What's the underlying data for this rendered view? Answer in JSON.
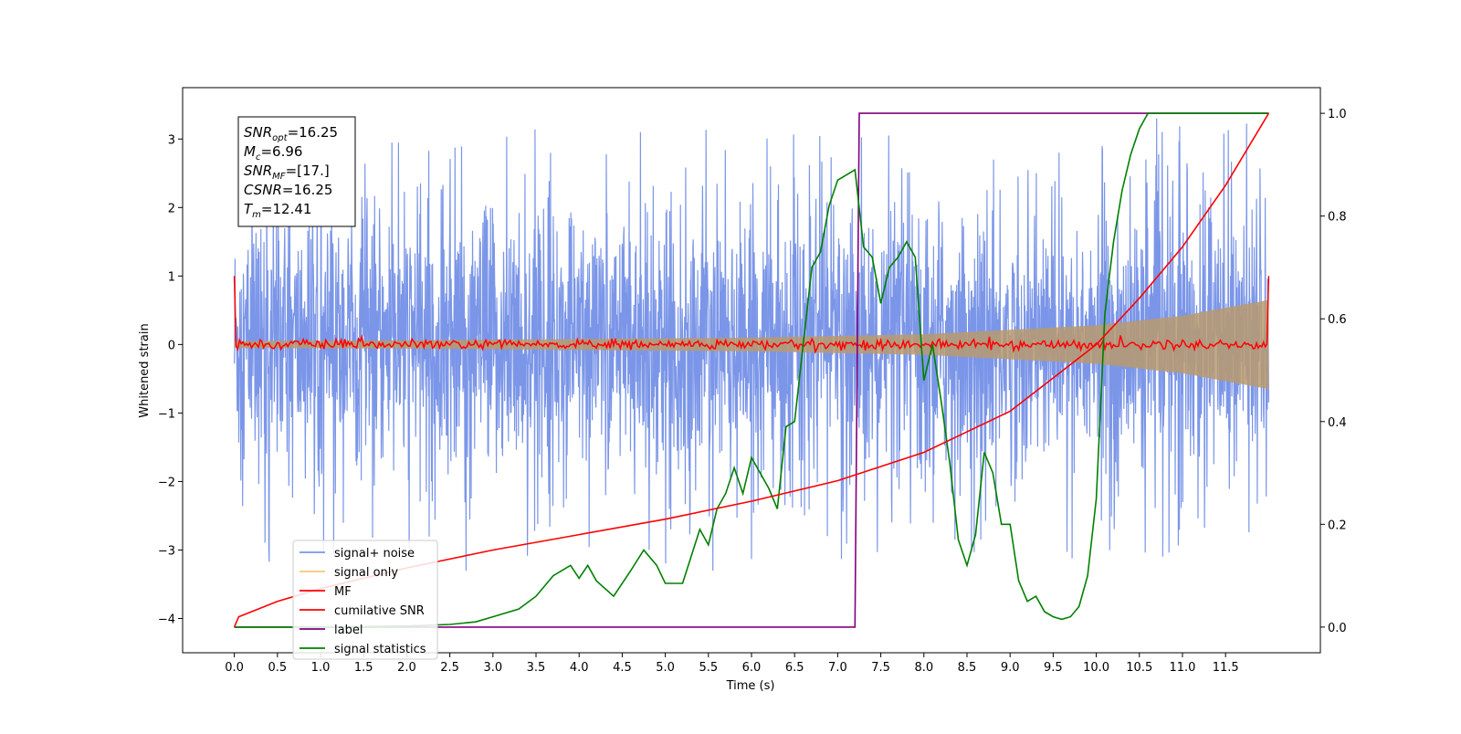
{
  "chart_data": {
    "type": "line",
    "title": "",
    "xlabel": "Time (s)",
    "ylabel": "Whitened strain",
    "xlim": [
      -0.6,
      12.6
    ],
    "ylim": [
      -4.5,
      3.75
    ],
    "y2lim": [
      -0.05,
      1.05
    ],
    "x_ticks": [
      0.0,
      0.5,
      1.0,
      1.5,
      2.0,
      2.5,
      3.0,
      3.5,
      4.0,
      4.5,
      5.0,
      5.5,
      6.0,
      6.5,
      7.0,
      7.5,
      8.0,
      8.5,
      9.0,
      9.5,
      10.0,
      10.5,
      11.0,
      11.5
    ],
    "x_tick_labels": [
      "0.0",
      "0.5",
      "1.0",
      "1.5",
      "2.0",
      "2.5",
      "3.0",
      "3.5",
      "4.0",
      "4.5",
      "5.0",
      "5.5",
      "6.0",
      "6.5",
      "7.0",
      "7.5",
      "8.0",
      "8.5",
      "9.0",
      "9.5",
      "10.0",
      "10.5",
      "11.0",
      "11.5"
    ],
    "y_ticks": [
      3,
      2,
      1,
      0,
      -1,
      -2,
      -3,
      -4
    ],
    "y_tick_labels": [
      "3",
      "2",
      "1",
      "0",
      "−1",
      "−2",
      "−3",
      "−4"
    ],
    "y2_ticks": [
      1.0,
      0.8,
      0.6,
      0.4,
      0.2,
      0.0
    ],
    "y2_tick_labels": [
      "1.0",
      "0.8",
      "0.6",
      "0.4",
      "0.2",
      "0.0"
    ],
    "legend_position": "lower-left",
    "annotation": {
      "lines": [
        {
          "base": "SNR",
          "sub": "opt",
          "value": "=16.25"
        },
        {
          "base": "M",
          "sub": "c",
          "value": "=6.96"
        },
        {
          "base": "SNR",
          "sub": "MF",
          "value": "=[17.]"
        },
        {
          "base": "CSNR",
          "sub": "",
          "value": "=16.25"
        },
        {
          "base": "T",
          "sub": "m",
          "value": "=12.41"
        }
      ]
    },
    "series": [
      {
        "name": "signal+ noise",
        "color": "#7b96e8",
        "axis": "left",
        "description": "noise band roughly ±1.6 with spikes to about ±3.3 over 0–12 s"
      },
      {
        "name": "signal only",
        "color": "#f5c775",
        "axis": "left",
        "envelope": {
          "x": [
            0.0,
            2.0,
            4.0,
            6.0,
            8.0,
            10.0,
            11.0,
            12.0
          ],
          "amp": [
            0.05,
            0.06,
            0.08,
            0.1,
            0.15,
            0.28,
            0.42,
            0.65
          ]
        }
      },
      {
        "name": "MF",
        "color": "#ff0000",
        "axis": "left",
        "description": "fluctuates near 0 with amplitude about 0.05, starts and ends near 1.0"
      },
      {
        "name": "cumilative SNR",
        "color": "#ff0000",
        "axis": "right",
        "x": [
          0.0,
          0.05,
          0.5,
          1.0,
          2.0,
          3.0,
          4.0,
          5.0,
          6.0,
          7.0,
          8.0,
          9.0,
          10.0,
          10.5,
          11.0,
          11.5,
          12.0
        ],
        "y": [
          0.0,
          0.02,
          0.05,
          0.075,
          0.115,
          0.15,
          0.18,
          0.21,
          0.245,
          0.285,
          0.34,
          0.42,
          0.55,
          0.64,
          0.74,
          0.86,
          1.0
        ]
      },
      {
        "name": "label",
        "color": "#800080",
        "axis": "right",
        "x": [
          0.0,
          7.2,
          7.25,
          12.0
        ],
        "y": [
          0.0,
          0.0,
          1.0,
          1.0
        ]
      },
      {
        "name": "signal statistics",
        "color": "#008000",
        "axis": "right",
        "x": [
          0.0,
          1.0,
          2.0,
          2.5,
          2.8,
          3.0,
          3.3,
          3.5,
          3.7,
          3.9,
          4.0,
          4.1,
          4.2,
          4.4,
          4.6,
          4.75,
          4.9,
          5.0,
          5.2,
          5.4,
          5.5,
          5.6,
          5.7,
          5.8,
          5.9,
          6.0,
          6.2,
          6.3,
          6.4,
          6.5,
          6.6,
          6.7,
          6.8,
          6.9,
          7.0,
          7.1,
          7.2,
          7.3,
          7.4,
          7.5,
          7.6,
          7.7,
          7.8,
          7.9,
          8.0,
          8.1,
          8.2,
          8.3,
          8.4,
          8.5,
          8.6,
          8.7,
          8.8,
          8.9,
          9.0,
          9.1,
          9.2,
          9.3,
          9.4,
          9.5,
          9.6,
          9.7,
          9.8,
          9.9,
          10.0,
          10.1,
          10.2,
          10.3,
          10.4,
          10.5,
          10.6,
          10.7,
          10.8,
          11.0,
          11.5,
          12.0
        ],
        "y": [
          0.0,
          0.0,
          0.002,
          0.005,
          0.01,
          0.02,
          0.035,
          0.06,
          0.1,
          0.12,
          0.095,
          0.12,
          0.09,
          0.06,
          0.11,
          0.15,
          0.12,
          0.085,
          0.085,
          0.19,
          0.16,
          0.23,
          0.26,
          0.31,
          0.26,
          0.33,
          0.27,
          0.23,
          0.39,
          0.4,
          0.55,
          0.7,
          0.73,
          0.82,
          0.87,
          0.88,
          0.89,
          0.74,
          0.72,
          0.63,
          0.7,
          0.72,
          0.75,
          0.72,
          0.48,
          0.55,
          0.44,
          0.32,
          0.17,
          0.12,
          0.18,
          0.34,
          0.3,
          0.2,
          0.2,
          0.09,
          0.05,
          0.06,
          0.03,
          0.02,
          0.015,
          0.02,
          0.04,
          0.1,
          0.25,
          0.61,
          0.75,
          0.85,
          0.92,
          0.97,
          1.0,
          1.0,
          1.0,
          1.0,
          1.0,
          1.0
        ]
      }
    ]
  }
}
